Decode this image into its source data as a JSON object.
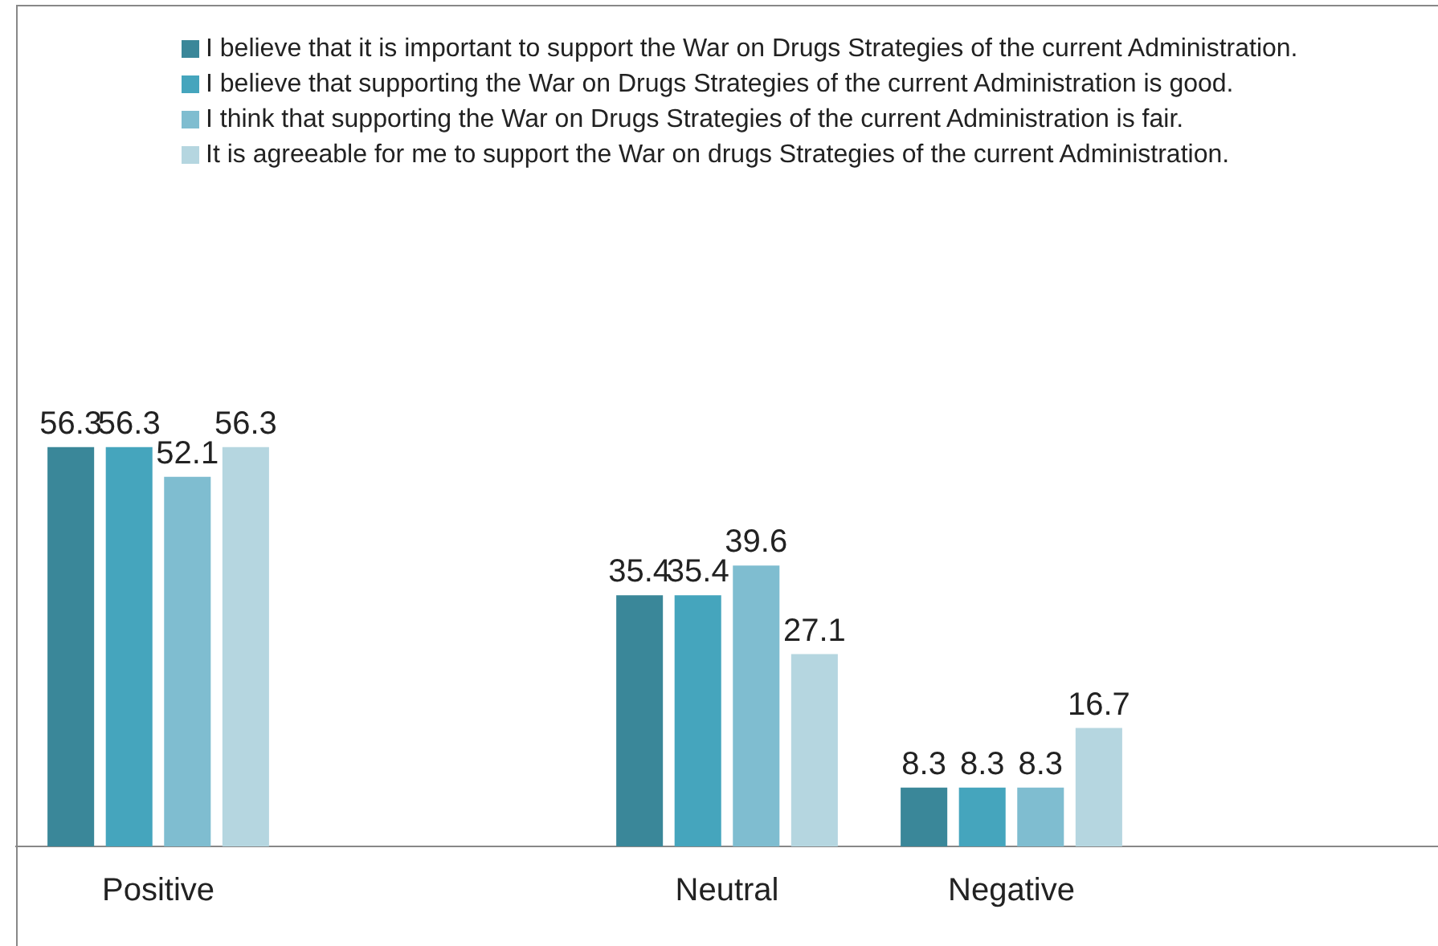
{
  "chart_data": {
    "type": "bar",
    "categories": [
      "Positive",
      null,
      "Neutral",
      "Negative",
      null
    ],
    "series": [
      {
        "name": "I believe that it is important to support the War on Drugs Strategies of the current Administration.",
        "color": "#3a8799",
        "values": [
          56.3,
          null,
          35.4,
          8.3,
          null
        ]
      },
      {
        "name": "I believe that supporting the War on Drugs Strategies of the current Administration is good.",
        "color": "#45a5bd",
        "values": [
          56.3,
          null,
          35.4,
          8.3,
          null
        ]
      },
      {
        "name": "I think that supporting the War on Drugs Strategies of the current Administration is fair.",
        "color": "#7fbdd0",
        "values": [
          52.1,
          null,
          39.6,
          8.3,
          null
        ]
      },
      {
        "name": "It is agreeable for me to support the War on drugs Strategies of the current Administration.",
        "color": "#b5d6e0",
        "values": [
          56.3,
          null,
          27.1,
          16.7,
          null
        ]
      }
    ],
    "data_labels": true,
    "legend": "top",
    "grid": false
  }
}
